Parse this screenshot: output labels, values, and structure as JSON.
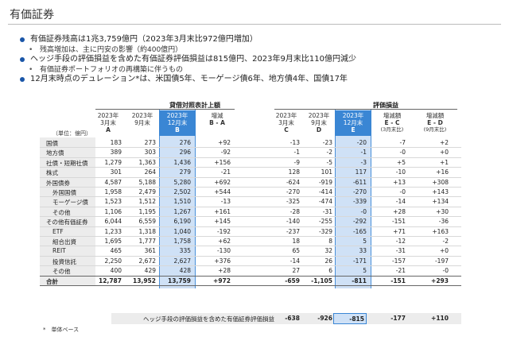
{
  "title": "有価証券",
  "bullets": [
    {
      "level": 1,
      "text": "有価証券残高は1兆3,759億円（2023年3月末比972億円増加）"
    },
    {
      "level": 2,
      "text": "残高増加は、主に円安の影響（約400億円）"
    },
    {
      "level": 1,
      "text": "ヘッジ手段の評価損益を含めた有価証券評価損益は815億円、2023年9月末比110億円減少"
    },
    {
      "level": 2,
      "text": "有価証券ポートフォリオの再構築に伴うもの"
    },
    {
      "level": 1,
      "text": "12月末時点のデュレーション*は、米国債5年、モーゲージ債6年、地方債4年、国債17年"
    }
  ],
  "table": {
    "group_balance": "貸借対照表計上額",
    "group_valuation": "評価損益",
    "unit": "（単位：億円）",
    "columns": [
      {
        "line1": "2023年",
        "line2": "3月末",
        "line3": "A"
      },
      {
        "line1": "2023年",
        "line2": "9月末",
        "line3": ""
      },
      {
        "line1": "2023年",
        "line2": "12月末",
        "line3": "B"
      },
      {
        "line1": "増減",
        "line2": "B - A",
        "line3": ""
      },
      {
        "line1": "2023年",
        "line2": "3月末",
        "line3": "C"
      },
      {
        "line1": "2023年",
        "line2": "9月末",
        "line3": "D"
      },
      {
        "line1": "2023年",
        "line2": "12月末",
        "line3": "E"
      },
      {
        "line1": "増減額",
        "line2": "E - C",
        "line3": "(3月末比)"
      },
      {
        "line1": "増減額",
        "line2": "E - D",
        "line3": "(9月末比)"
      }
    ],
    "rows": [
      {
        "label": "国債",
        "sub": false,
        "v": [
          "183",
          "273",
          "276",
          "+92",
          "-13",
          "-23",
          "-20",
          "-7",
          "+2"
        ]
      },
      {
        "label": "地方債",
        "sub": false,
        "v": [
          "389",
          "303",
          "296",
          "-92",
          "-1",
          "-2",
          "-1",
          "-0",
          "+0"
        ]
      },
      {
        "label": "社債・短期社債",
        "sub": false,
        "v": [
          "1,279",
          "1,363",
          "1,436",
          "+156",
          "-9",
          "-5",
          "-3",
          "+5",
          "+1"
        ]
      },
      {
        "label": "株式",
        "sub": false,
        "v": [
          "301",
          "264",
          "279",
          "-21",
          "128",
          "101",
          "117",
          "-10",
          "+16"
        ]
      },
      {
        "label": "外国債券",
        "sub": false,
        "v": [
          "4,587",
          "5,188",
          "5,280",
          "+692",
          "-624",
          "-919",
          "-611",
          "+13",
          "+308"
        ]
      },
      {
        "label": "外国国債",
        "sub": true,
        "v": [
          "1,958",
          "2,479",
          "2,502",
          "+544",
          "-270",
          "-414",
          "-270",
          "-0",
          "+143"
        ]
      },
      {
        "label": "モーゲージ債",
        "sub": true,
        "v": [
          "1,523",
          "1,512",
          "1,510",
          "-13",
          "-325",
          "-474",
          "-339",
          "-14",
          "+134"
        ]
      },
      {
        "label": "その他",
        "sub": true,
        "v": [
          "1,106",
          "1,195",
          "1,267",
          "+161",
          "-28",
          "-31",
          "-0",
          "+28",
          "+30"
        ]
      },
      {
        "label": "その他有価証券",
        "sub": false,
        "v": [
          "6,044",
          "6,559",
          "6,190",
          "+145",
          "-140",
          "-255",
          "-292",
          "-151",
          "-36"
        ]
      },
      {
        "label": "ETF",
        "sub": true,
        "v": [
          "1,233",
          "1,318",
          "1,040",
          "-192",
          "-237",
          "-329",
          "-165",
          "+71",
          "+163"
        ]
      },
      {
        "label": "組合出資",
        "sub": true,
        "v": [
          "1,695",
          "1,777",
          "1,758",
          "+62",
          "18",
          "8",
          "5",
          "-12",
          "-2"
        ]
      },
      {
        "label": "REIT",
        "sub": true,
        "v": [
          "465",
          "361",
          "335",
          "-130",
          "65",
          "32",
          "33",
          "-31",
          "+0"
        ]
      },
      {
        "label": "投資信託",
        "sub": true,
        "v": [
          "2,250",
          "2,672",
          "2,627",
          "+376",
          "-14",
          "26",
          "-171",
          "-157",
          "-197"
        ]
      },
      {
        "label": "その他",
        "sub": true,
        "v": [
          "400",
          "429",
          "428",
          "+28",
          "27",
          "6",
          "5",
          "-21",
          "-0"
        ]
      }
    ],
    "total": {
      "label": "合計",
      "v": [
        "12,787",
        "13,952",
        "13,759",
        "+972",
        "-659",
        "-1,105",
        "-811",
        "-151",
        "+293"
      ]
    },
    "hedge": {
      "label": "ヘッジ手段の評価損益を含めた有価証券評価損益",
      "v": [
        "-638",
        "-926",
        "-815",
        "-177",
        "+110"
      ]
    }
  },
  "footnote": "*　単体ベース",
  "colors": {
    "accent": "#3a86d4",
    "highlight": "#cfe1f6",
    "bullet": "#1a56a8"
  }
}
